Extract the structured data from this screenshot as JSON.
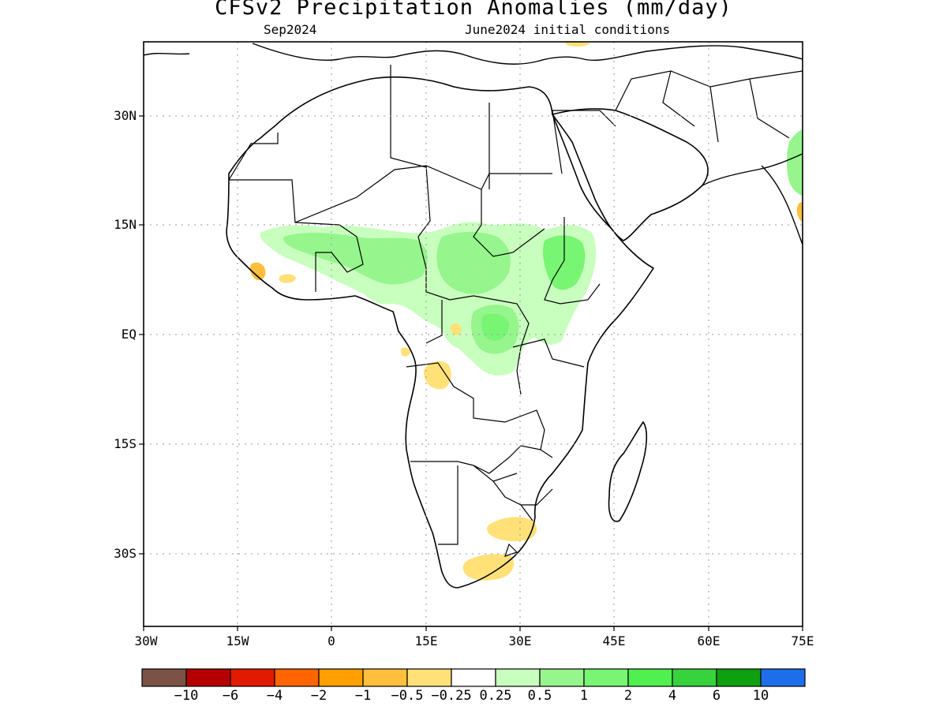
{
  "title": "CFSv2 Precipitation Anomalies (mm/day)",
  "subtitle_left": "Sep2024",
  "subtitle_right": "June2024 initial conditions",
  "lat_labels": [
    "30N",
    "15N",
    "EQ",
    "15S",
    "30S"
  ],
  "lon_labels": [
    "30W",
    "15W",
    "0",
    "15E",
    "30E",
    "45E",
    "60E",
    "75E"
  ],
  "extent": {
    "lon": [
      -30,
      75
    ],
    "lat": [
      -40,
      40
    ]
  },
  "grid": "dotted",
  "colorbar": {
    "colors": [
      "#7b5246",
      "#b40000",
      "#e11a00",
      "#ff6400",
      "#ffa000",
      "#ffbe3c",
      "#ffe178",
      "#ffffff",
      "#c8ffbe",
      "#96f58c",
      "#78f573",
      "#50f050",
      "#37d23c",
      "#0fa00f",
      "#1e6eeb"
    ],
    "labels": [
      "-10",
      "-6",
      "-4",
      "-2",
      "-1",
      "-0.5",
      "-0.25",
      "0.25",
      "0.5",
      "1",
      "2",
      "4",
      "6",
      "10"
    ]
  },
  "anomaly_colors": {
    "wet1": "#c8ffbe",
    "wet2": "#96f58c",
    "wet3": "#78f573",
    "dry1": "#ffe178",
    "dry2": "#ffbe3c"
  }
}
